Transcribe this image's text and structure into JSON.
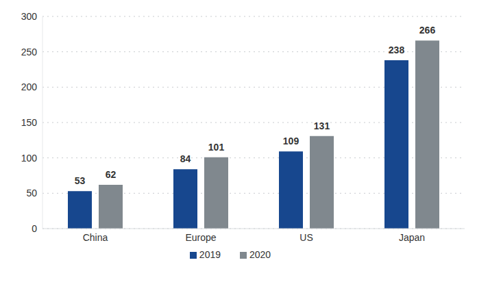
{
  "chart_data": {
    "type": "bar",
    "categories": [
      "China",
      "Europe",
      "US",
      "Japan"
    ],
    "series": [
      {
        "name": "2019",
        "color": "#17478e",
        "values": [
          53,
          84,
          109,
          238
        ]
      },
      {
        "name": "2020",
        "color": "#80888e",
        "values": [
          62,
          101,
          131,
          266
        ]
      }
    ],
    "ylim": [
      0,
      300
    ],
    "yticks": [
      0,
      50,
      100,
      150,
      200,
      250,
      300
    ],
    "grid": true,
    "legend": "bottom",
    "data_labels": true
  }
}
